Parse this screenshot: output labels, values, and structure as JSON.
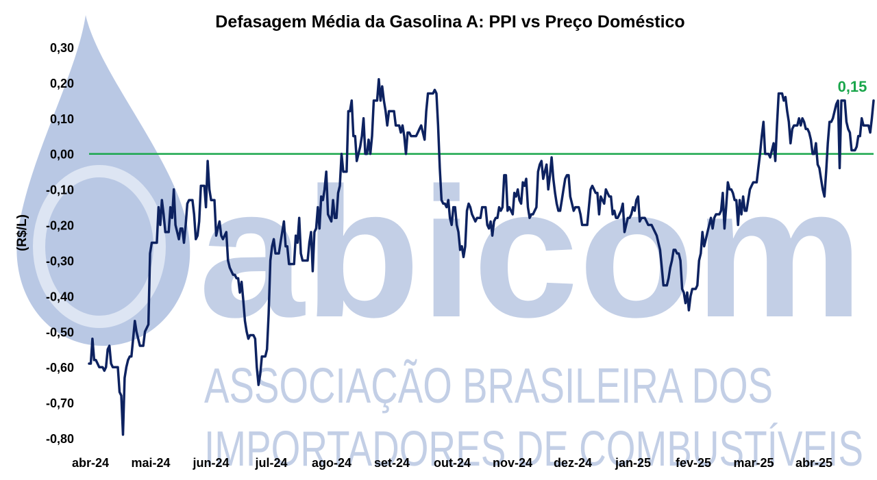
{
  "watermark": {
    "logo_text": "abicom",
    "line1": "ASSOCIAÇÃO BRASILEIRA DOS",
    "line2": "IMPORTADORES DE COMBUSTÍVEIS",
    "color": "#b9c8e4"
  },
  "chart_data": {
    "type": "line",
    "title": "Defasagem Média da Gasolina A: PPI vs Preço Doméstico",
    "ylabel": "(R$/L)",
    "xlabel": "",
    "ylim": [
      -0.8,
      0.3
    ],
    "yticks": [
      "0,30",
      "0,20",
      "0,10",
      "0,00",
      "-0,10",
      "-0,20",
      "-0,30",
      "-0,40",
      "-0,50",
      "-0,60",
      "-0,70",
      "-0,80"
    ],
    "ytick_values": [
      0.3,
      0.2,
      0.1,
      0.0,
      -0.1,
      -0.2,
      -0.3,
      -0.4,
      -0.5,
      -0.6,
      -0.7,
      -0.8
    ],
    "xticks": [
      "abr-24",
      "mai-24",
      "jun-24",
      "jul-24",
      "ago-24",
      "set-24",
      "out-24",
      "nov-24",
      "dez-24",
      "jan-25",
      "fev-25",
      "mar-25",
      "abr-25"
    ],
    "grid": false,
    "legend": "none",
    "zero_line": {
      "value": 0.0,
      "color": "#1aa64b"
    },
    "last_value_label": {
      "text": "0,15",
      "color": "#1aa64b"
    },
    "series": [
      {
        "color": "#0d2260",
        "values": [
          -0.59,
          -0.59,
          -0.52,
          -0.58,
          -0.58,
          -0.59,
          -0.6,
          -0.6,
          -0.6,
          -0.61,
          -0.6,
          -0.55,
          -0.54,
          -0.59,
          -0.6,
          -0.6,
          -0.6,
          -0.6,
          -0.67,
          -0.68,
          -0.79,
          -0.63,
          -0.6,
          -0.58,
          -0.57,
          -0.57,
          -0.52,
          -0.47,
          -0.5,
          -0.52,
          -0.54,
          -0.54,
          -0.54,
          -0.5,
          -0.49,
          -0.48,
          -0.28,
          -0.25,
          -0.25,
          -0.25,
          -0.25,
          -0.15,
          -0.2,
          -0.13,
          -0.17,
          -0.22,
          -0.22,
          -0.22,
          -0.15,
          -0.18,
          -0.1,
          -0.2,
          -0.22,
          -0.24,
          -0.21,
          -0.21,
          -0.25,
          -0.2,
          -0.14,
          -0.13,
          -0.13,
          -0.13,
          -0.17,
          -0.24,
          -0.23,
          -0.19,
          -0.09,
          -0.09,
          -0.09,
          -0.15,
          -0.02,
          -0.1,
          -0.13,
          -0.13,
          -0.13,
          -0.23,
          -0.21,
          -0.19,
          -0.23,
          -0.24,
          -0.23,
          -0.22,
          -0.3,
          -0.32,
          -0.33,
          -0.34,
          -0.34,
          -0.35,
          -0.35,
          -0.39,
          -0.36,
          -0.41,
          -0.47,
          -0.5,
          -0.52,
          -0.51,
          -0.51,
          -0.51,
          -0.52,
          -0.6,
          -0.65,
          -0.62,
          -0.57,
          -0.57,
          -0.57,
          -0.55,
          -0.45,
          -0.3,
          -0.26,
          -0.24,
          -0.28,
          -0.28,
          -0.28,
          -0.25,
          -0.22,
          -0.19,
          -0.26,
          -0.26,
          -0.31,
          -0.31,
          -0.31,
          -0.31,
          -0.23,
          -0.25,
          -0.18,
          -0.28,
          -0.3,
          -0.3,
          -0.3,
          -0.3,
          -0.25,
          -0.22,
          -0.33,
          -0.22,
          -0.21,
          -0.15,
          -0.21,
          -0.12,
          -0.13,
          -0.1,
          -0.05,
          -0.17,
          -0.18,
          -0.19,
          -0.13,
          -0.18,
          -0.18,
          -0.11,
          -0.09,
          0.0,
          -0.05,
          -0.05,
          -0.05,
          0.12,
          0.12,
          0.15,
          0.05,
          0.05,
          -0.02,
          0.0,
          0.02,
          0.05,
          0.1,
          0.0,
          0.0,
          0.04,
          0.0,
          0.05,
          0.15,
          0.15,
          0.15,
          0.21,
          0.15,
          0.19,
          0.15,
          0.12,
          0.08,
          0.12,
          0.12,
          0.12,
          0.12,
          0.08,
          0.08,
          0.08,
          0.06,
          0.08,
          0.05,
          0.0,
          0.06,
          0.06,
          0.05,
          0.05,
          0.05,
          0.05,
          0.06,
          0.07,
          0.08,
          0.06,
          0.04,
          0.12,
          0.17,
          0.17,
          0.17,
          0.17,
          0.18,
          0.17,
          0.08,
          -0.04,
          -0.13,
          -0.14,
          -0.14,
          -0.15,
          -0.13,
          -0.18,
          -0.2,
          -0.15,
          -0.15,
          -0.2,
          -0.22,
          -0.27,
          -0.26,
          -0.29,
          -0.26,
          -0.16,
          -0.14,
          -0.15,
          -0.17,
          -0.18,
          -0.19,
          -0.18,
          -0.18,
          -0.18,
          -0.15,
          -0.15,
          -0.15,
          -0.2,
          -0.21,
          -0.19,
          -0.23,
          -0.19,
          -0.18,
          -0.18,
          -0.15,
          -0.16,
          -0.15,
          -0.06,
          -0.06,
          -0.16,
          -0.15,
          -0.16,
          -0.17,
          -0.11,
          -0.12,
          -0.1,
          -0.13,
          -0.14,
          -0.08,
          -0.09,
          -0.07,
          -0.15,
          -0.18,
          -0.17,
          -0.17,
          -0.16,
          -0.15,
          -0.05,
          -0.03,
          -0.02,
          -0.07,
          -0.05,
          -0.03,
          -0.1,
          -0.06,
          -0.01,
          -0.07,
          -0.11,
          -0.14,
          -0.16,
          -0.16,
          -0.13,
          -0.1,
          -0.07,
          -0.06,
          -0.06,
          -0.12,
          -0.14,
          -0.16,
          -0.15,
          -0.15,
          -0.15,
          -0.17,
          -0.2,
          -0.2,
          -0.2,
          -0.2,
          -0.15,
          -0.1,
          -0.09,
          -0.1,
          -0.11,
          -0.11,
          -0.17,
          -0.12,
          -0.13,
          -0.14,
          -0.1,
          -0.11,
          -0.12,
          -0.12,
          -0.17,
          -0.16,
          -0.18,
          -0.18,
          -0.17,
          -0.16,
          -0.14,
          -0.22,
          -0.2,
          -0.18,
          -0.18,
          -0.17,
          -0.15,
          -0.16,
          -0.13,
          -0.12,
          -0.19,
          -0.18,
          -0.18,
          -0.18,
          -0.19,
          -0.2,
          -0.2,
          -0.2,
          -0.21,
          -0.22,
          -0.23,
          -0.25,
          -0.27,
          -0.32,
          -0.37,
          -0.37,
          -0.37,
          -0.35,
          -0.32,
          -0.3,
          -0.27,
          -0.27,
          -0.28,
          -0.28,
          -0.3,
          -0.38,
          -0.39,
          -0.42,
          -0.39,
          -0.44,
          -0.4,
          -0.38,
          -0.38,
          -0.38,
          -0.37,
          -0.3,
          -0.28,
          -0.22,
          -0.26,
          -0.24,
          -0.22,
          -0.2,
          -0.18,
          -0.21,
          -0.18,
          -0.17,
          -0.17,
          -0.17,
          -0.16,
          -0.11,
          -0.21,
          -0.15,
          -0.08,
          -0.1,
          -0.1,
          -0.11,
          -0.13,
          -0.13,
          -0.2,
          -0.13,
          -0.17,
          -0.12,
          -0.16,
          -0.16,
          -0.13,
          -0.1,
          -0.09,
          -0.08,
          -0.08,
          -0.08,
          -0.04,
          0.0,
          0.05,
          0.09,
          0.0,
          0.0,
          0.0,
          -0.01,
          0.01,
          0.03,
          -0.02,
          0.08,
          0.17,
          0.17,
          0.17,
          0.15,
          0.16,
          0.12,
          0.09,
          0.03,
          0.07,
          0.08,
          0.08,
          0.08,
          0.1,
          0.08,
          0.1,
          0.09,
          0.07,
          0.07,
          0.06,
          0.04,
          0.0,
          0.0,
          0.03,
          -0.03,
          -0.04,
          -0.07,
          -0.1,
          -0.12,
          -0.05,
          0.03,
          0.09,
          0.09,
          0.1,
          0.12,
          0.14,
          0.15,
          -0.04,
          0.15,
          0.15,
          0.15,
          0.09,
          0.07,
          0.06,
          0.01,
          0.01,
          0.01,
          0.02,
          0.05,
          0.05,
          0.1,
          0.08,
          0.08,
          0.08,
          0.08,
          0.06,
          0.1,
          0.15
        ]
      }
    ]
  }
}
